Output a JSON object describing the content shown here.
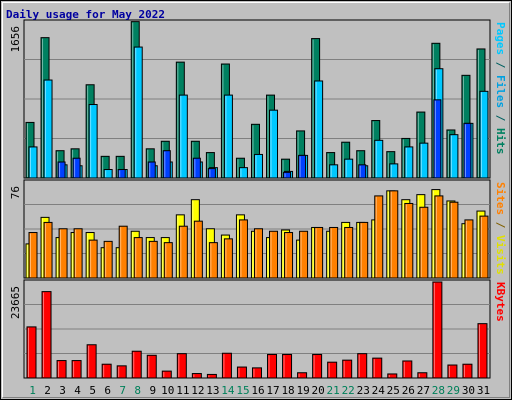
{
  "chart_data": {
    "type": "bar",
    "title": "Daily usage for May 2022",
    "x": [
      "1",
      "2",
      "3",
      "4",
      "5",
      "6",
      "7",
      "8",
      "9",
      "10",
      "11",
      "12",
      "13",
      "14",
      "15",
      "16",
      "17",
      "18",
      "19",
      "20",
      "21",
      "22",
      "23",
      "24",
      "25",
      "26",
      "27",
      "28",
      "29",
      "30",
      "31"
    ],
    "weekend_days": [
      "1",
      "7",
      "8",
      "14",
      "15",
      "21",
      "22",
      "28",
      "29"
    ],
    "panels": [
      {
        "id": "pages-files-hits",
        "ymax_label": "1656",
        "ymax": 1656,
        "side_label": [
          {
            "text": "Pages",
            "color": "#00c8ff"
          },
          {
            "text": " / ",
            "color": "#006060"
          },
          {
            "text": "Files",
            "color": "#00a0e0"
          },
          {
            "text": " / ",
            "color": "#006060"
          },
          {
            "text": "Hits",
            "color": "#008060"
          }
        ],
        "series": [
          {
            "name": "Hits",
            "color": "#008060",
            "values": [
              590,
              1490,
              290,
              310,
              990,
              230,
              230,
              1660,
              310,
              390,
              1230,
              390,
              270,
              1210,
              210,
              570,
              880,
              200,
              500,
              1480,
              270,
              380,
              290,
              610,
              280,
              420,
              700,
              1430,
              510,
              1090,
              1370
            ]
          },
          {
            "name": "Files",
            "color": "#00c8ff",
            "values": [
              330,
              1040,
              140,
              130,
              780,
              90,
              90,
              1390,
              130,
              170,
              880,
              170,
              110,
              880,
              110,
              250,
              720,
              70,
              240,
              1030,
              140,
              200,
              130,
              400,
              150,
              330,
              370,
              1160,
              460,
              580,
              920
            ]
          },
          {
            "name": "Pages",
            "color": "#0040ff",
            "values": [
              0,
              0,
              170,
              210,
              0,
              0,
              90,
              0,
              170,
              290,
              0,
              210,
              100,
              0,
              0,
              0,
              0,
              60,
              240,
              0,
              0,
              0,
              140,
              0,
              0,
              0,
              0,
              830,
              0,
              580,
              0
            ]
          }
        ]
      },
      {
        "id": "visits-sites",
        "ymax_label": "76",
        "ymax": 76,
        "side_label": [
          {
            "text": "Sites",
            "color": "#ff8000"
          },
          {
            "text": " / ",
            "color": "#806000"
          },
          {
            "text": "Visits",
            "color": "#e0e000"
          }
        ],
        "series": [
          {
            "name": "Visits",
            "color": "#ffff00",
            "values": [
              27,
              48,
              32,
              36,
              36,
              24,
              24,
              37,
              32,
              32,
              50,
              62,
              39,
              34,
              50,
              37,
              32,
              38,
              30,
              40,
              37,
              44,
              44,
              46,
              69,
              62,
              66,
              70,
              61,
              43,
              53
            ]
          },
          {
            "name": "Sites",
            "color": "#ff8000",
            "values": [
              36,
              44,
              39,
              39,
              30,
              29,
              41,
              32,
              29,
              28,
              41,
              45,
              28,
              31,
              46,
              39,
              37,
              36,
              37,
              40,
              40,
              40,
              44,
              65,
              69,
              59,
              56,
              65,
              60,
              46,
              49
            ]
          }
        ]
      },
      {
        "id": "kbytes",
        "ymax_label": "23665",
        "ymax": 23665,
        "side_label": [
          {
            "text": "KBytes",
            "color": "#ff0000"
          }
        ],
        "series": [
          {
            "name": "KBytes",
            "color": "#ff0000",
            "values": [
              12600,
              21300,
              4300,
              4300,
              8200,
              3400,
              3000,
              6600,
              5600,
              1700,
              6000,
              1100,
              880,
              6100,
              2700,
              2500,
              5800,
              5800,
              1300,
              5800,
              3900,
              4400,
              6000,
              4900,
              1000,
              4200,
              1300,
              23665,
              3200,
              3400,
              13400
            ]
          }
        ]
      }
    ]
  }
}
